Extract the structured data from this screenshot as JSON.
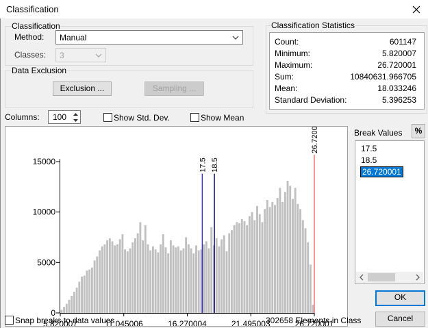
{
  "window": {
    "title": "Classification",
    "close_glyph": "✕"
  },
  "classification": {
    "legend": "Classification",
    "method_label": "Method:",
    "method_value": "Manual",
    "classes_label": "Classes:",
    "classes_value": "3"
  },
  "exclusion": {
    "legend": "Data Exclusion",
    "exclusion_button": "Exclusion ...",
    "sampling_button": "Sampling ..."
  },
  "stats": {
    "legend": "Classification Statistics",
    "rows": [
      {
        "key": "Count:",
        "value": "601147"
      },
      {
        "key": "Minimum:",
        "value": "5.820007"
      },
      {
        "key": "Maximum:",
        "value": "26.720001"
      },
      {
        "key": "Sum:",
        "value": "10840631.966705"
      },
      {
        "key": "Mean:",
        "value": "18.033246"
      },
      {
        "key": "Standard Deviation:",
        "value": "5.396253"
      }
    ]
  },
  "columns": {
    "label": "Columns:",
    "value": "100"
  },
  "options": {
    "show_std_dev": "Show Std. Dev.",
    "show_std_dev_checked": false,
    "show_mean": "Show Mean",
    "show_mean_checked": false,
    "snap_breaks": "Snap breaks to data values",
    "snap_breaks_checked": false
  },
  "break_values": {
    "label": "Break Values",
    "percent_button": "%",
    "items": [
      "17.5",
      "18.5",
      "26.720001"
    ],
    "selected_index": 2
  },
  "footer": {
    "elements_in_class": "302658 Elements in Class",
    "ok_button": "OK",
    "cancel_button": "Cancel"
  },
  "colors": {
    "bar": "#c0c0c0",
    "break_line_1": "#3333cc",
    "break_line_2": "#000066",
    "max_line": "#ff6666",
    "selection": "#0078d7"
  },
  "chart_data": {
    "type": "bar",
    "title": "",
    "xlabel": "",
    "ylabel": "",
    "xlim": [
      5.820007,
      26.720001
    ],
    "ylim": [
      0,
      15000
    ],
    "yticks": [
      0,
      5000,
      10000,
      15000
    ],
    "ytick_labels": [
      "0",
      "5000",
      "10000",
      "15000"
    ],
    "xticks": [
      5.820007,
      11.045006,
      16.270004,
      21.495003,
      26.720001
    ],
    "xtick_labels": [
      "5.820007",
      "11.045006",
      "16.270004",
      "21.495003",
      "26.720001"
    ],
    "breaks": [
      {
        "value": 17.5,
        "label": "17.5"
      },
      {
        "value": 18.5,
        "label": "18.5"
      },
      {
        "value": 26.720001,
        "label": "26.720001"
      }
    ],
    "bin_count": 100,
    "values": [
      300,
      600,
      900,
      1300,
      1700,
      2100,
      2500,
      3100,
      3600,
      3700,
      4200,
      4300,
      4500,
      5200,
      5600,
      6200,
      6600,
      6800,
      7200,
      7400,
      7100,
      6700,
      6800,
      7300,
      7800,
      6300,
      6100,
      6400,
      7000,
      7400,
      7900,
      9000,
      7200,
      8700,
      6800,
      6200,
      6600,
      6300,
      6000,
      6800,
      7800,
      6500,
      5900,
      7200,
      6700,
      6500,
      6600,
      6200,
      6400,
      7500,
      6800,
      6400,
      5900,
      6700,
      6200,
      6300,
      6800,
      7100,
      6400,
      8500,
      6700,
      7400,
      6600,
      7300,
      7700,
      6100,
      7900,
      8200,
      8700,
      9000,
      8900,
      9300,
      9100,
      8700,
      9600,
      10000,
      9200,
      10600,
      9800,
      9000,
      10300,
      11200,
      10500,
      11000,
      10700,
      11400,
      12400,
      11000,
      12000,
      13100,
      12600,
      11300,
      12400,
      10800,
      10300,
      9200,
      8400,
      7000,
      4800,
      800
    ]
  }
}
